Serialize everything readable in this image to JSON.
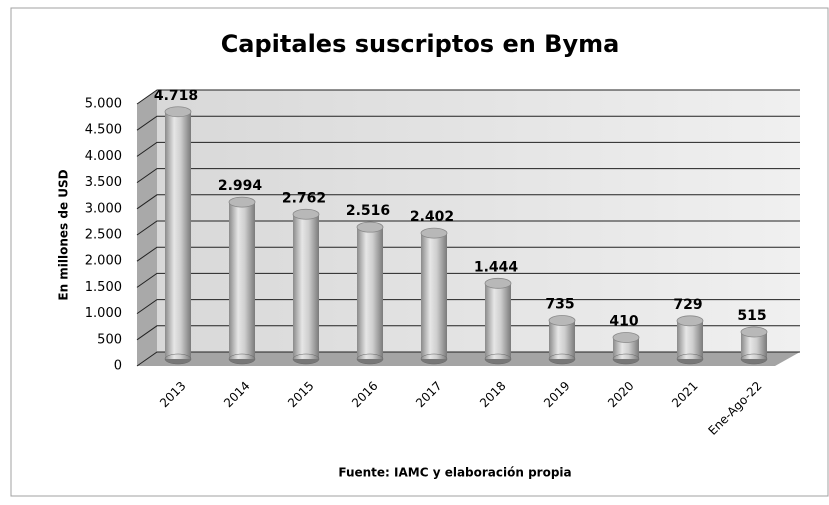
{
  "chart_data": {
    "type": "bar3d",
    "title": "Capitales suscriptos en Byma",
    "y_label": "En millones de USD",
    "source": "Fuente: IAMC y elaboración propia",
    "categories": [
      "2013",
      "2014",
      "2015",
      "2016",
      "2017",
      "2018",
      "2019",
      "2020",
      "2021",
      "Ene-Ago-22"
    ],
    "values": [
      4718,
      2994,
      2762,
      2516,
      2402,
      1444,
      735,
      410,
      729,
      515
    ],
    "value_labels": [
      "4.718",
      "2.994",
      "2.762",
      "2.516",
      "2.402",
      "1.444",
      "735",
      "410",
      "729",
      "515"
    ],
    "color": "#b8b8b8",
    "ylim": [
      0,
      5000
    ],
    "yticks": [
      0,
      500,
      {
        "value": 1000,
        "label": "1.000"
      },
      {
        "value": 1500,
        "label": "1.500"
      },
      {
        "value": 2000,
        "label": "2.000"
      },
      {
        "value": 2500,
        "label": "2.500"
      },
      {
        "value": 3000,
        "label": "3.000"
      },
      {
        "value": 3500,
        "label": "3.500"
      },
      {
        "value": 4000,
        "label": "4.000"
      },
      {
        "value": 4500,
        "label": "4.500"
      },
      {
        "value": 5000,
        "label": "5.000"
      }
    ],
    "grid": true
  }
}
